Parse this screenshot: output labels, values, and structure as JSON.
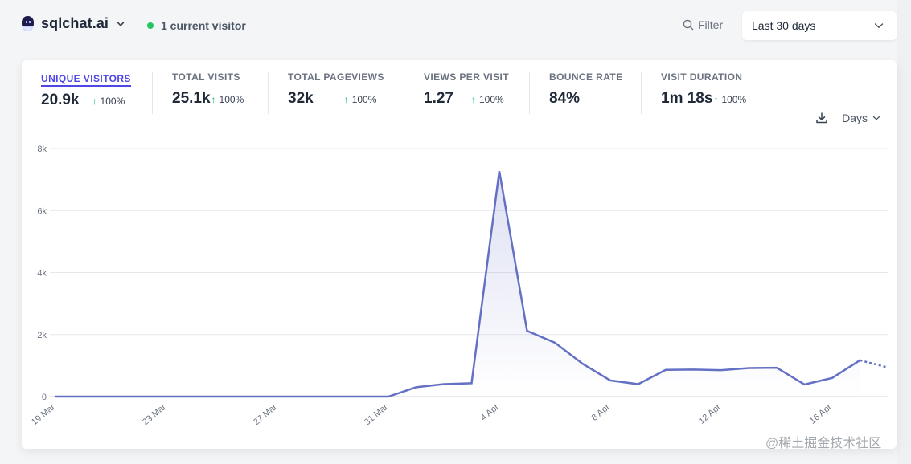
{
  "header": {
    "site_name": "sqlchat.ai",
    "site_icon": "sqlchat-logo-icon",
    "current_visitors": "1 current visitor",
    "filter_label": "Filter",
    "period_label": "Last 30 days"
  },
  "colors": {
    "accent": "#4f46e5",
    "line": "#6470c4",
    "live_dot": "#22c55e",
    "up_arrow": "#10b981"
  },
  "stats": [
    {
      "label": "UNIQUE VISITORS",
      "value": "20.9k",
      "change": "100%",
      "active": true
    },
    {
      "label": "TOTAL VISITS",
      "value": "25.1k",
      "change": "100%"
    },
    {
      "label": "TOTAL PAGEVIEWS",
      "value": "32k",
      "change": "100%"
    },
    {
      "label": "VIEWS PER VISIT",
      "value": "1.27",
      "change": "100%"
    },
    {
      "label": "BOUNCE RATE",
      "value": "84%",
      "change": ""
    },
    {
      "label": "VISIT DURATION",
      "value": "1m 18s",
      "change": "100%"
    }
  ],
  "tools": {
    "download_icon": "download-icon",
    "interval_label": "Days"
  },
  "watermark": "@稀土掘金技术社区",
  "chart_data": {
    "type": "line",
    "title": "",
    "xlabel": "",
    "ylabel": "",
    "x": [
      "19 Mar",
      "20 Mar",
      "21 Mar",
      "22 Mar",
      "23 Mar",
      "24 Mar",
      "25 Mar",
      "26 Mar",
      "27 Mar",
      "28 Mar",
      "29 Mar",
      "30 Mar",
      "31 Mar",
      "1 Apr",
      "2 Apr",
      "3 Apr",
      "4 Apr",
      "5 Apr",
      "6 Apr",
      "7 Apr",
      "8 Apr",
      "9 Apr",
      "10 Apr",
      "11 Apr",
      "12 Apr",
      "13 Apr",
      "14 Apr",
      "15 Apr",
      "16 Apr",
      "17 Apr",
      "18 Apr"
    ],
    "series": [
      {
        "name": "Unique visitors",
        "values": [
          0,
          0,
          0,
          0,
          0,
          0,
          0,
          0,
          0,
          0,
          0,
          0,
          0,
          300,
          400,
          430,
          7270,
          2120,
          1740,
          1060,
          520,
          400,
          860,
          870,
          850,
          920,
          930,
          390,
          600,
          1170,
          940
        ],
        "incomplete_last_point": true
      }
    ],
    "x_tick_labels": [
      "19 Mar",
      "23 Mar",
      "27 Mar",
      "31 Mar",
      "4 Apr",
      "8 Apr",
      "12 Apr",
      "16 Apr"
    ],
    "y_tick_labels": [
      "0",
      "2k",
      "4k",
      "6k",
      "8k"
    ],
    "ylim": [
      0,
      8000
    ],
    "grid": true,
    "legend": "none"
  }
}
